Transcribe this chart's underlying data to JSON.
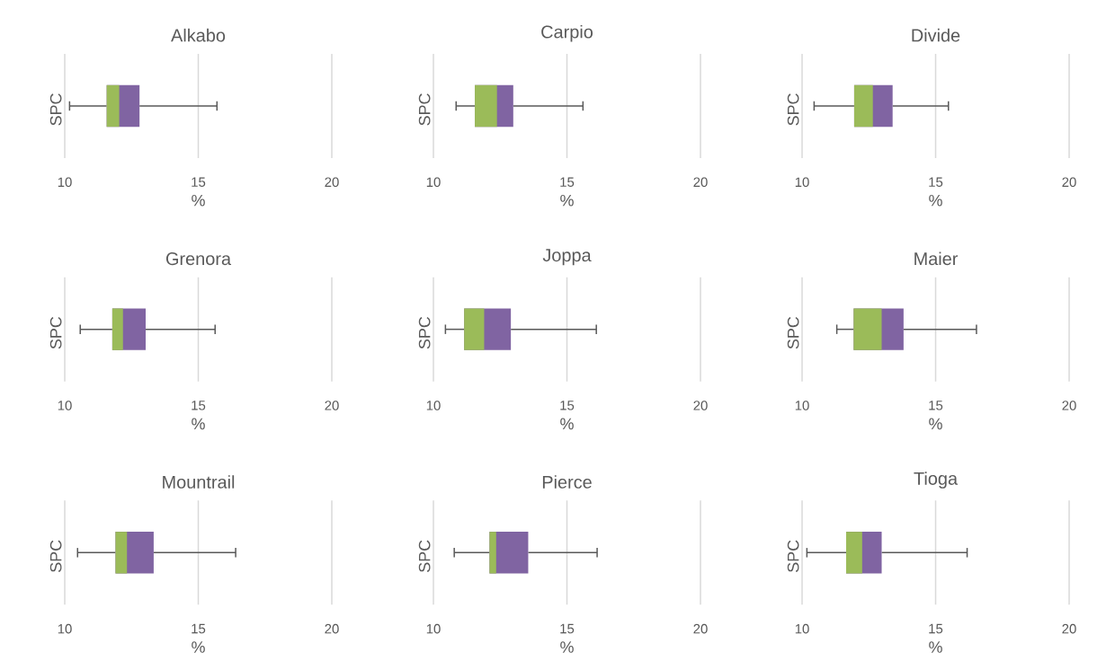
{
  "chart_data": [
    {
      "type": "box",
      "title": "Alkabo",
      "orientation": "horizontal",
      "categories": [
        "SPC"
      ],
      "xlabel": "%",
      "xlim": [
        10,
        20
      ],
      "xticks": [
        10,
        15,
        20
      ],
      "grid": "x",
      "color": "#8064a2",
      "boxes": [
        {
          "low": 10.18,
          "q1": 11.57,
          "median": 12.04,
          "q3": 12.8,
          "high": 15.7
        }
      ]
    },
    {
      "type": "box",
      "title": "Carpio",
      "orientation": "horizontal",
      "categories": [
        "SPC"
      ],
      "xlabel": "%",
      "xlim": [
        10,
        20
      ],
      "xticks": [
        10,
        15,
        20
      ],
      "grid": "x",
      "color": "#8064a2",
      "boxes": [
        {
          "low": 10.85,
          "q1": 11.55,
          "median": 12.38,
          "q3": 12.99,
          "high": 15.6
        }
      ]
    },
    {
      "type": "box",
      "title": "Divide",
      "orientation": "horizontal",
      "categories": [
        "SPC"
      ],
      "xlabel": "%",
      "xlim": [
        10,
        20
      ],
      "xticks": [
        10,
        15,
        20
      ],
      "grid": "x",
      "color": "#8064a2",
      "boxes": [
        {
          "low": 10.45,
          "q1": 11.95,
          "median": 12.65,
          "q3": 13.39,
          "high": 15.48
        }
      ]
    },
    {
      "type": "box",
      "title": "Grenora",
      "orientation": "horizontal",
      "categories": [
        "SPC"
      ],
      "xlabel": "%",
      "xlim": [
        10,
        20
      ],
      "xticks": [
        10,
        15,
        20
      ],
      "grid": "x",
      "color": "#8064a2",
      "boxes": [
        {
          "low": 10.58,
          "q1": 11.78,
          "median": 12.18,
          "q3": 13.03,
          "high": 15.63
        }
      ]
    },
    {
      "type": "box",
      "title": "Joppa",
      "orientation": "horizontal",
      "categories": [
        "SPC"
      ],
      "xlabel": "%",
      "xlim": [
        10,
        20
      ],
      "xticks": [
        10,
        15,
        20
      ],
      "grid": "x",
      "color": "#8064a2",
      "boxes": [
        {
          "low": 10.45,
          "q1": 11.15,
          "median": 11.9,
          "q3": 12.9,
          "high": 16.1
        }
      ]
    },
    {
      "type": "box",
      "title": "Maier",
      "orientation": "horizontal",
      "categories": [
        "SPC"
      ],
      "xlabel": "%",
      "xlim": [
        10,
        20
      ],
      "xticks": [
        10,
        15,
        20
      ],
      "grid": "x",
      "color": "#8064a2",
      "boxes": [
        {
          "low": 11.3,
          "q1": 11.93,
          "median": 12.98,
          "q3": 13.8,
          "high": 16.53
        }
      ]
    },
    {
      "type": "box",
      "title": "Mountrail",
      "orientation": "horizontal",
      "categories": [
        "SPC"
      ],
      "xlabel": "%",
      "xlim": [
        10,
        20
      ],
      "xticks": [
        10,
        15,
        20
      ],
      "grid": "x",
      "color": "#8064a2",
      "boxes": [
        {
          "low": 10.48,
          "q1": 11.9,
          "median": 12.33,
          "q3": 13.33,
          "high": 16.4
        }
      ]
    },
    {
      "type": "box",
      "title": "Pierce",
      "orientation": "horizontal",
      "categories": [
        "SPC"
      ],
      "xlabel": "%",
      "xlim": [
        10,
        20
      ],
      "xticks": [
        10,
        15,
        20
      ],
      "grid": "x",
      "color": "#8064a2",
      "boxes": [
        {
          "low": 10.78,
          "q1": 12.1,
          "median": 12.35,
          "q3": 13.55,
          "high": 16.13
        }
      ]
    },
    {
      "type": "box",
      "title": "Tioga",
      "orientation": "horizontal",
      "categories": [
        "SPC"
      ],
      "xlabel": "%",
      "xlim": [
        10,
        20
      ],
      "xticks": [
        10,
        15,
        20
      ],
      "grid": "x",
      "color": "#8064a2",
      "boxes": [
        {
          "low": 10.18,
          "q1": 11.65,
          "median": 12.25,
          "q3": 12.98,
          "high": 16.18
        }
      ]
    }
  ]
}
